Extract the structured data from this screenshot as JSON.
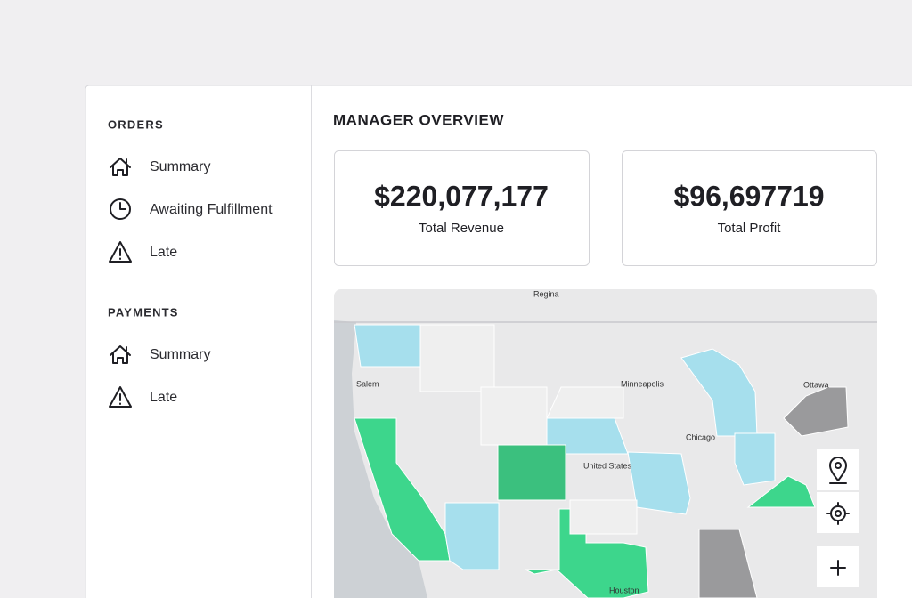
{
  "sidebar": {
    "sections": [
      {
        "title": "ORDERS",
        "items": [
          "Summary",
          "Awaiting Fulfillment",
          "Late"
        ]
      },
      {
        "title": "PAYMENTS",
        "items": [
          "Summary",
          "Late"
        ]
      }
    ]
  },
  "main": {
    "title": "MANAGER OVERVIEW",
    "kpis": [
      {
        "value": "$220,077,177",
        "label": "Total Revenue"
      },
      {
        "value": "$96,697719",
        "label": "Total Profit"
      }
    ],
    "map": {
      "labels": [
        "United States",
        "Chicago",
        "Minneapolis",
        "Houston",
        "Ottawa",
        "Regina",
        "Salem"
      ]
    }
  }
}
